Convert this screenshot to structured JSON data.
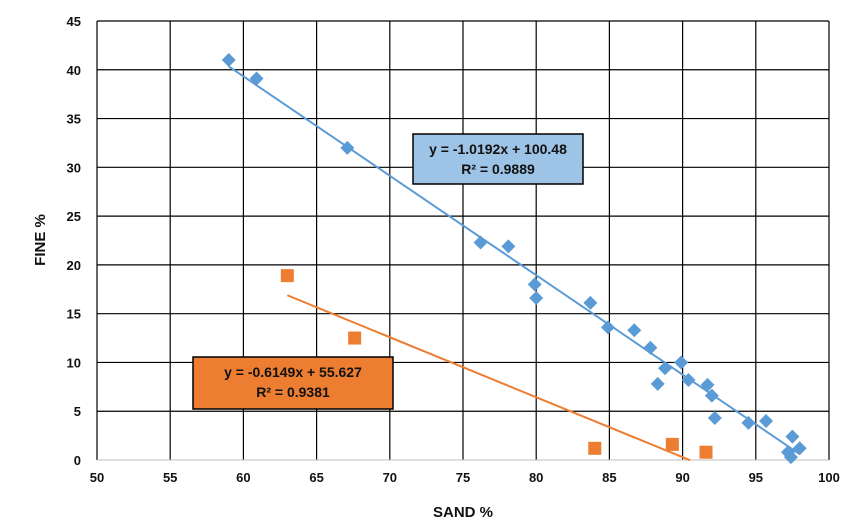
{
  "chart_data": {
    "type": "scatter",
    "xlabel": "SAND %",
    "ylabel": "FINE %",
    "xlim": [
      50,
      100
    ],
    "ylim": [
      0,
      45
    ],
    "xticks": [
      50,
      55,
      60,
      65,
      70,
      75,
      80,
      85,
      90,
      95,
      100
    ],
    "yticks": [
      0,
      5,
      10,
      15,
      20,
      25,
      30,
      35,
      40,
      45
    ],
    "grid": true,
    "series": [
      {
        "marker": "diamond",
        "color": "#5b9bd5",
        "points": [
          [
            59,
            41
          ],
          [
            60.9,
            39.1
          ],
          [
            67.1,
            32
          ],
          [
            76.2,
            22.3
          ],
          [
            78.1,
            21.9
          ],
          [
            79.9,
            18
          ],
          [
            80,
            16.6
          ],
          [
            83.7,
            16.1
          ],
          [
            84.9,
            13.6
          ],
          [
            86.7,
            13.3
          ],
          [
            87.8,
            11.5
          ],
          [
            88.3,
            7.8
          ],
          [
            88.8,
            9.4
          ],
          [
            89.9,
            10
          ],
          [
            90.4,
            8.2
          ],
          [
            91.7,
            7.7
          ],
          [
            92,
            6.6
          ],
          [
            92.2,
            4.3
          ],
          [
            94.5,
            3.8
          ],
          [
            95.7,
            4
          ],
          [
            97.2,
            0.8
          ],
          [
            97.4,
            0.3
          ],
          [
            97.5,
            2.4
          ],
          [
            98,
            1.2
          ]
        ],
        "trendline": {
          "slope": -1.0192,
          "intercept": 100.48,
          "x_range": [
            59,
            98
          ],
          "equation": "y = -1.0192x + 100.48",
          "r2": "R² = 0.9889",
          "label_color": "#9dc3e6"
        }
      },
      {
        "marker": "square",
        "color": "#ed7d31",
        "points": [
          [
            63,
            18.9
          ],
          [
            67.6,
            12.5
          ],
          [
            84,
            1.2
          ],
          [
            89.3,
            1.6
          ],
          [
            91.6,
            0.8
          ]
        ],
        "trendline": {
          "slope": -0.6149,
          "intercept": 55.627,
          "x_range": [
            63,
            90.5
          ],
          "equation": "y = -0.6149x + 55.627",
          "r2": "R² = 0.9381",
          "label_color": "#ed7d31"
        }
      }
    ]
  }
}
